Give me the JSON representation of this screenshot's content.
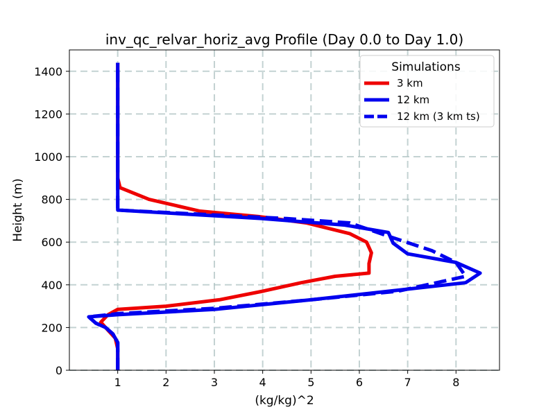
{
  "chart_data": {
    "type": "line",
    "title": "inv_qc_relvar_horiz_avg Profile (Day 0.0 to Day 1.0)",
    "xlabel": "(kg/kg)^2",
    "ylabel": "Height (m)",
    "xlim": [
      0.0,
      8.9
    ],
    "ylim": [
      0,
      1500
    ],
    "xticks": [
      1,
      2,
      3,
      4,
      5,
      6,
      7,
      8
    ],
    "yticks": [
      0,
      200,
      400,
      600,
      800,
      1000,
      1200,
      1400
    ],
    "grid": true,
    "legend": {
      "title": "Simulations",
      "position": "top-right"
    },
    "series": [
      {
        "name": "3 km",
        "color": "#ee0000",
        "style": "solid",
        "points": [
          [
            1.0,
            0
          ],
          [
            1.0,
            100
          ],
          [
            0.95,
            150
          ],
          [
            0.75,
            200
          ],
          [
            0.65,
            225
          ],
          [
            0.8,
            260
          ],
          [
            1.0,
            285
          ],
          [
            2.0,
            300
          ],
          [
            3.1,
            330
          ],
          [
            4.0,
            370
          ],
          [
            4.8,
            410
          ],
          [
            5.5,
            440
          ],
          [
            6.2,
            455
          ],
          [
            6.2,
            500
          ],
          [
            6.25,
            550
          ],
          [
            6.15,
            600
          ],
          [
            5.8,
            640
          ],
          [
            4.9,
            690
          ],
          [
            3.9,
            720
          ],
          [
            2.7,
            745
          ],
          [
            1.65,
            800
          ],
          [
            1.05,
            855
          ],
          [
            1.0,
            900
          ],
          [
            1.0,
            1440
          ]
        ]
      },
      {
        "name": "12 km",
        "color": "#0000ee",
        "style": "solid",
        "points": [
          [
            1.0,
            0
          ],
          [
            1.0,
            130
          ],
          [
            0.9,
            170
          ],
          [
            0.75,
            200
          ],
          [
            0.55,
            220
          ],
          [
            0.4,
            250
          ],
          [
            1.0,
            260
          ],
          [
            3.0,
            285
          ],
          [
            5.0,
            330
          ],
          [
            7.0,
            380
          ],
          [
            8.2,
            410
          ],
          [
            8.5,
            455
          ],
          [
            8.0,
            505
          ],
          [
            7.0,
            545
          ],
          [
            6.7,
            595
          ],
          [
            6.6,
            645
          ],
          [
            5.7,
            680
          ],
          [
            4.0,
            710
          ],
          [
            1.0,
            750
          ],
          [
            1.0,
            1440
          ]
        ]
      },
      {
        "name": "12 km (3 km ts)",
        "color": "#0000ee",
        "style": "dashed",
        "points": [
          [
            1.0,
            0
          ],
          [
            1.0,
            130
          ],
          [
            0.9,
            170
          ],
          [
            0.75,
            200
          ],
          [
            0.55,
            220
          ],
          [
            0.4,
            250
          ],
          [
            1.0,
            265
          ],
          [
            3.0,
            290
          ],
          [
            5.0,
            330
          ],
          [
            6.8,
            370
          ],
          [
            8.2,
            440
          ],
          [
            8.0,
            505
          ],
          [
            7.5,
            560
          ],
          [
            6.7,
            620
          ],
          [
            5.8,
            690
          ],
          [
            4.5,
            710
          ],
          [
            1.0,
            750
          ],
          [
            1.0,
            1440
          ]
        ]
      }
    ]
  }
}
